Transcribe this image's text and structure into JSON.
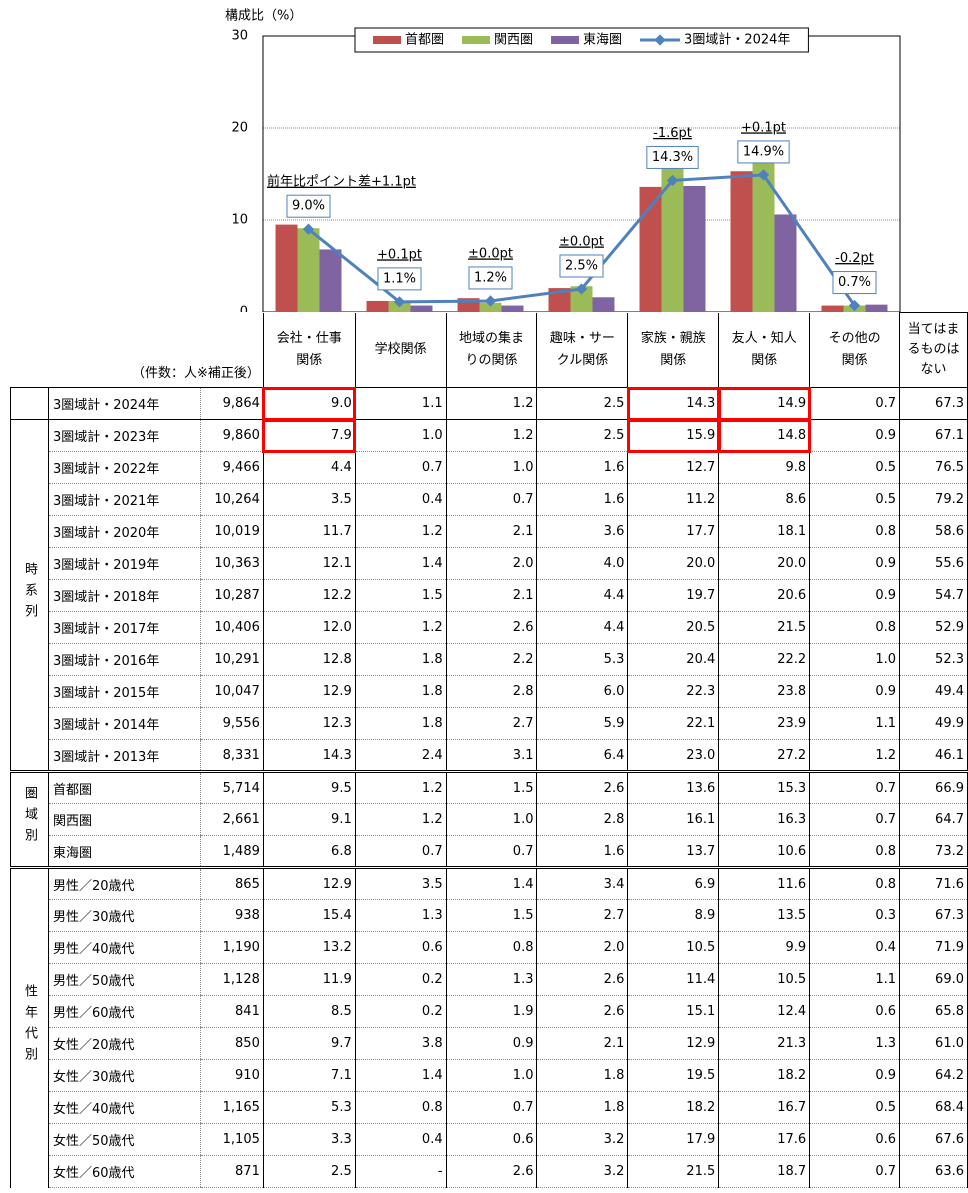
{
  "chart_data": {
    "type": "bar",
    "y_axis_title": "構成比（%）",
    "categories": [
      "会社・仕事\n関係",
      "学校関係",
      "地域の集ま\nりの関係",
      "趣味・サー\nクル関係",
      "家族・親族\n関係",
      "友人・知人\n関係",
      "その他の\n関係"
    ],
    "ylim": [
      0,
      30
    ],
    "yticks": [
      0,
      10,
      20,
      30
    ],
    "grid": true,
    "legend": "top",
    "series": [
      {
        "name": "首都圏",
        "type": "bar",
        "color": "#c0504d",
        "values": [
          9.5,
          1.2,
          1.5,
          2.6,
          13.6,
          15.3,
          0.7
        ]
      },
      {
        "name": "関西圏",
        "type": "bar",
        "color": "#9bbb59",
        "values": [
          9.1,
          1.2,
          1.0,
          2.8,
          16.1,
          16.3,
          0.7
        ]
      },
      {
        "name": "東海圏",
        "type": "bar",
        "color": "#8064a2",
        "values": [
          6.8,
          0.7,
          0.7,
          1.6,
          13.7,
          10.6,
          0.8
        ]
      },
      {
        "name": "3圏域計・2024年",
        "type": "line",
        "color": "#4f81bd",
        "values": [
          9.0,
          1.1,
          1.2,
          2.5,
          14.3,
          14.9,
          0.7
        ],
        "value_labels": [
          "9.0%",
          "1.1%",
          "1.2%",
          "2.5%",
          "14.3%",
          "14.9%",
          "0.7%"
        ]
      }
    ],
    "annotations": [
      "前年比ポイント差+1.1pt",
      "+0.1pt",
      "±0.0pt",
      "±0.0pt",
      "-1.6pt",
      "+0.1pt",
      "-0.2pt"
    ]
  },
  "table": {
    "caption": "（件数：人※補正後）",
    "extra_column": "当てはまるものはない",
    "highlight_cells": [
      [
        0,
        0,
        2
      ],
      [
        1,
        0,
        2
      ],
      [
        0,
        0,
        6
      ],
      [
        1,
        0,
        6
      ],
      [
        0,
        0,
        7
      ],
      [
        1,
        0,
        7
      ]
    ],
    "sections": [
      {
        "rows": [
          [
            "3圏域計・2024年",
            "9,864",
            "9.0",
            "1.1",
            "1.2",
            "2.5",
            "14.3",
            "14.9",
            "0.7",
            "67.3"
          ]
        ]
      },
      {
        "label": "時系列",
        "rows": [
          [
            "3圏域計・2023年",
            "9,860",
            "7.9",
            "1.0",
            "1.2",
            "2.5",
            "15.9",
            "14.8",
            "0.9",
            "67.1"
          ],
          [
            "3圏域計・2022年",
            "9,466",
            "4.4",
            "0.7",
            "1.0",
            "1.6",
            "12.7",
            "9.8",
            "0.5",
            "76.5"
          ],
          [
            "3圏域計・2021年",
            "10,264",
            "3.5",
            "0.4",
            "0.7",
            "1.6",
            "11.2",
            "8.6",
            "0.5",
            "79.2"
          ],
          [
            "3圏域計・2020年",
            "10,019",
            "11.7",
            "1.2",
            "2.1",
            "3.6",
            "17.7",
            "18.1",
            "0.8",
            "58.6"
          ],
          [
            "3圏域計・2019年",
            "10,363",
            "12.1",
            "1.4",
            "2.0",
            "4.0",
            "20.0",
            "20.0",
            "0.9",
            "55.6"
          ],
          [
            "3圏域計・2018年",
            "10,287",
            "12.2",
            "1.5",
            "2.1",
            "4.4",
            "19.7",
            "20.6",
            "0.9",
            "54.7"
          ],
          [
            "3圏域計・2017年",
            "10,406",
            "12.0",
            "1.2",
            "2.6",
            "4.4",
            "20.5",
            "21.5",
            "0.8",
            "52.9"
          ],
          [
            "3圏域計・2016年",
            "10,291",
            "12.8",
            "1.8",
            "2.2",
            "5.3",
            "20.4",
            "22.2",
            "1.0",
            "52.3"
          ],
          [
            "3圏域計・2015年",
            "10,047",
            "12.9",
            "1.8",
            "2.8",
            "6.0",
            "22.3",
            "23.8",
            "0.9",
            "49.4"
          ],
          [
            "3圏域計・2014年",
            "9,556",
            "12.3",
            "1.8",
            "2.7",
            "5.9",
            "22.1",
            "23.9",
            "1.1",
            "49.9"
          ],
          [
            "3圏域計・2013年",
            "8,331",
            "14.3",
            "2.4",
            "3.1",
            "6.4",
            "23.0",
            "27.2",
            "1.2",
            "46.1"
          ]
        ]
      },
      {
        "label": "圏域別",
        "rows": [
          [
            "首都圏",
            "5,714",
            "9.5",
            "1.2",
            "1.5",
            "2.6",
            "13.6",
            "15.3",
            "0.7",
            "66.9"
          ],
          [
            "関西圏",
            "2,661",
            "9.1",
            "1.2",
            "1.0",
            "2.8",
            "16.1",
            "16.3",
            "0.7",
            "64.7"
          ],
          [
            "東海圏",
            "1,489",
            "6.8",
            "0.7",
            "0.7",
            "1.6",
            "13.7",
            "10.6",
            "0.8",
            "73.2"
          ]
        ]
      },
      {
        "label": "性年代別",
        "rows": [
          [
            "男性／20歳代",
            "865",
            "12.9",
            "3.5",
            "1.4",
            "3.4",
            "6.9",
            "11.6",
            "0.8",
            "71.6"
          ],
          [
            "男性／30歳代",
            "938",
            "15.4",
            "1.3",
            "1.5",
            "2.7",
            "8.9",
            "13.5",
            "0.3",
            "67.3"
          ],
          [
            "男性／40歳代",
            "1,190",
            "13.2",
            "0.6",
            "0.8",
            "2.0",
            "10.5",
            "9.9",
            "0.4",
            "71.9"
          ],
          [
            "男性／50歳代",
            "1,128",
            "11.9",
            "0.2",
            "1.3",
            "2.6",
            "11.4",
            "10.5",
            "1.1",
            "69.0"
          ],
          [
            "男性／60歳代",
            "841",
            "8.5",
            "0.2",
            "1.9",
            "2.6",
            "15.1",
            "12.4",
            "0.6",
            "65.8"
          ],
          [
            "女性／20歳代",
            "850",
            "9.7",
            "3.8",
            "0.9",
            "2.1",
            "12.9",
            "21.3",
            "1.3",
            "61.0"
          ],
          [
            "女性／30歳代",
            "910",
            "7.1",
            "1.4",
            "1.0",
            "1.8",
            "19.5",
            "18.2",
            "0.9",
            "64.2"
          ],
          [
            "女性／40歳代",
            "1,165",
            "5.3",
            "0.8",
            "0.7",
            "1.8",
            "18.2",
            "16.7",
            "0.5",
            "68.4"
          ],
          [
            "女性／50歳代",
            "1,105",
            "3.3",
            "0.4",
            "0.6",
            "3.2",
            "17.9",
            "17.6",
            "0.6",
            "67.6"
          ],
          [
            "女性／60歳代",
            "871",
            "2.5",
            "-",
            "2.6",
            "3.2",
            "21.5",
            "18.7",
            "0.7",
            "63.6"
          ]
        ]
      }
    ]
  }
}
